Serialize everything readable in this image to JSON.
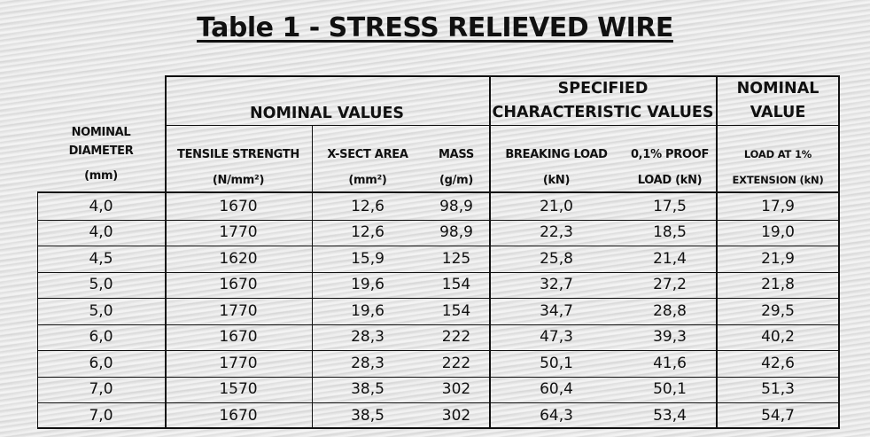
{
  "title": "Table 1 - STRESS RELIEVED WIRE",
  "header": {
    "nominal_values": "NOMINAL VALUES",
    "specified_line1": "SPECIFIED",
    "specified_line2": "CHARACTERISTIC VALUES",
    "nominal_value_line1": "NOMINAL",
    "nominal_value_line2": "VALUE",
    "diameter_line1": "NOMINAL",
    "diameter_line2": "DIAMETER",
    "diameter_unit": "(mm)",
    "tensile": "TENSILE STRENGTH",
    "tensile_unit": "(N/mm²)",
    "xsect": "X-SECT AREA",
    "xsect_unit": "(mm²)",
    "mass": "MASS",
    "mass_unit": "(g/m)",
    "breaking": "BREAKING LOAD",
    "breaking_unit": "(kN)",
    "proof_line1": "0,1% PROOF",
    "proof_line2": "LOAD (kN)",
    "load1_line1": "LOAD AT 1%",
    "load1_line2": "EXTENSION (kN)"
  },
  "rows": [
    [
      "4,0",
      "1670",
      "12,6",
      "98,9",
      "21,0",
      "17,5",
      "17,9"
    ],
    [
      "4,0",
      "1770",
      "12,6",
      "98,9",
      "22,3",
      "18,5",
      "19,0"
    ],
    [
      "4,5",
      "1620",
      "15,9",
      "125",
      "25,8",
      "21,4",
      "21,9"
    ],
    [
      "5,0",
      "1670",
      "19,6",
      "154",
      "32,7",
      "27,2",
      "21,8"
    ],
    [
      "5,0",
      "1770",
      "19,6",
      "154",
      "34,7",
      "28,8",
      "29,5"
    ],
    [
      "6,0",
      "1670",
      "28,3",
      "222",
      "47,3",
      "39,3",
      "40,2"
    ],
    [
      "6,0",
      "1770",
      "28,3",
      "222",
      "50,1",
      "41,6",
      "42,6"
    ],
    [
      "7,0",
      "1570",
      "38,5",
      "302",
      "60,4",
      "50,1",
      "51,3"
    ],
    [
      "7,0",
      "1670",
      "38,5",
      "302",
      "64,3",
      "53,4",
      "54,7"
    ]
  ]
}
